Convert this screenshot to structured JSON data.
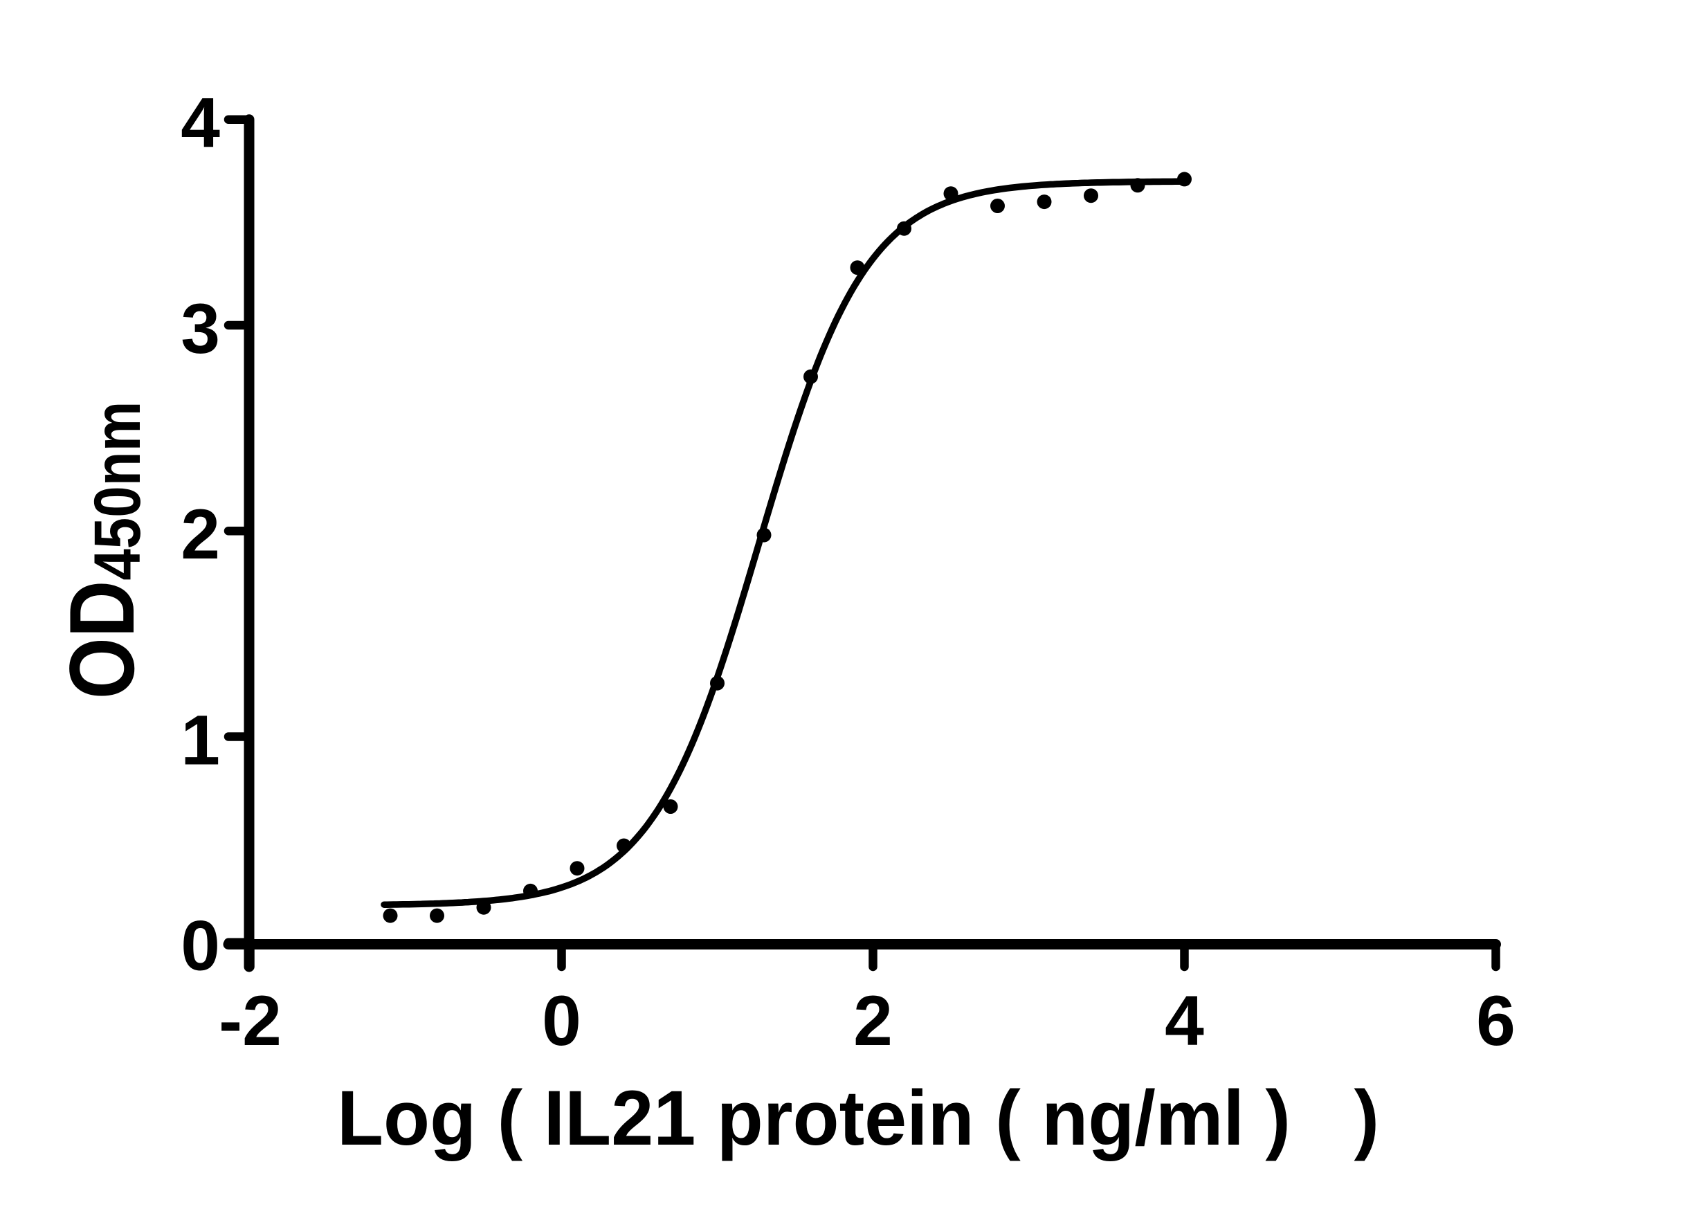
{
  "figure": {
    "background": "#ffffff",
    "ink_color": "#000000"
  },
  "chart_data": {
    "type": "scatter",
    "title": "",
    "xlabel": "Log ( IL21 protein ( ng/ml )   )",
    "ylabel": "OD",
    "ylabel_subscript": "450nm",
    "xlim": [
      -2,
      6
    ],
    "ylim": [
      0,
      4
    ],
    "x_ticks": [
      -2,
      0,
      2,
      4,
      6
    ],
    "y_ticks": [
      0,
      1,
      2,
      3,
      4
    ],
    "grid": false,
    "legend": null,
    "marker": {
      "shape": "circle",
      "color": "#000000",
      "radius_px": 10.5
    },
    "curve_color": "#000000",
    "points": [
      [
        -1.1,
        0.13
      ],
      [
        -0.8,
        0.13
      ],
      [
        -0.5,
        0.17
      ],
      [
        -0.2,
        0.25
      ],
      [
        0.1,
        0.36
      ],
      [
        0.4,
        0.47
      ],
      [
        0.7,
        0.66
      ],
      [
        1.0,
        1.26
      ],
      [
        1.3,
        1.98
      ],
      [
        1.6,
        2.75
      ],
      [
        1.9,
        3.28
      ],
      [
        2.2,
        3.47
      ],
      [
        2.5,
        3.64
      ],
      [
        2.8,
        3.58
      ],
      [
        3.1,
        3.6
      ],
      [
        3.4,
        3.63
      ],
      [
        3.7,
        3.68
      ],
      [
        4.0,
        3.71
      ]
    ],
    "fit_curve": {
      "model": "four_parameter_logistic",
      "bottom": 0.18,
      "top": 3.7,
      "log_ec50": 1.268,
      "hill_slope": 1.26,
      "x_start": -1.14,
      "x_end": 4.0
    }
  }
}
